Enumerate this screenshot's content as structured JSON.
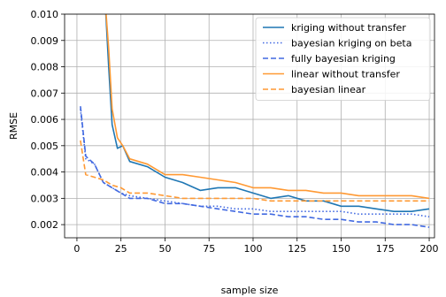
{
  "chart_data": {
    "type": "line",
    "xlabel": "sample size",
    "ylabel": "RMSE",
    "xlim": [
      -7,
      203
    ],
    "ylim": [
      0.0015,
      0.01
    ],
    "xticks": [
      0,
      25,
      50,
      75,
      100,
      125,
      150,
      175,
      200
    ],
    "yticks": [
      0.002,
      0.003,
      0.004,
      0.005,
      0.006,
      0.007,
      0.008,
      0.009,
      0.01
    ],
    "xtick_labels": [
      "0",
      "25",
      "50",
      "75",
      "100",
      "125",
      "150",
      "175",
      "200"
    ],
    "ytick_labels": [
      "0.002",
      "0.003",
      "0.004",
      "0.005",
      "0.006",
      "0.007",
      "0.008",
      "0.009",
      "0.010"
    ],
    "grid": true,
    "legend_position": "upper-right",
    "series": [
      {
        "name": "kriging without transfer",
        "color": "#1f77b4",
        "style": "solid",
        "x": [
          16,
          18,
          20,
          23,
          26,
          30,
          40,
          50,
          60,
          70,
          80,
          90,
          100,
          110,
          120,
          130,
          140,
          150,
          160,
          170,
          180,
          190,
          200
        ],
        "y": [
          0.0105,
          0.008,
          0.0058,
          0.0049,
          0.005,
          0.0044,
          0.0042,
          0.0038,
          0.0036,
          0.0033,
          0.0034,
          0.0034,
          0.0032,
          0.003,
          0.0031,
          0.0029,
          0.0029,
          0.0027,
          0.0027,
          0.0026,
          0.0025,
          0.0025,
          0.0026
        ]
      },
      {
        "name": "bayesian kriging on beta",
        "color": "#4169e1",
        "style": "dotted",
        "x": [
          2,
          5,
          10,
          15,
          20,
          25,
          30,
          40,
          50,
          60,
          70,
          80,
          90,
          100,
          110,
          120,
          130,
          140,
          150,
          160,
          170,
          180,
          190,
          200
        ],
        "y": [
          0.0064,
          0.0045,
          0.0043,
          0.0036,
          0.0034,
          0.0032,
          0.0031,
          0.003,
          0.0029,
          0.0028,
          0.0027,
          0.0027,
          0.0026,
          0.0026,
          0.0025,
          0.0025,
          0.0025,
          0.0025,
          0.0025,
          0.0024,
          0.0024,
          0.0024,
          0.0024,
          0.0023
        ]
      },
      {
        "name": "fully bayesian kriging",
        "color": "#4169e1",
        "style": "dashed",
        "x": [
          2,
          5,
          10,
          15,
          20,
          25,
          30,
          40,
          50,
          60,
          70,
          80,
          90,
          100,
          110,
          120,
          130,
          140,
          150,
          160,
          170,
          180,
          190,
          200
        ],
        "y": [
          0.0065,
          0.0046,
          0.0043,
          0.0036,
          0.0034,
          0.0032,
          0.003,
          0.003,
          0.0028,
          0.0028,
          0.0027,
          0.0026,
          0.0025,
          0.0024,
          0.0024,
          0.0023,
          0.0023,
          0.0022,
          0.0022,
          0.0021,
          0.0021,
          0.002,
          0.002,
          0.0019
        ]
      },
      {
        "name": "linear without transfer",
        "color": "#ff9933",
        "style": "solid",
        "x": [
          16,
          18,
          20,
          23,
          26,
          30,
          40,
          50,
          60,
          70,
          80,
          90,
          100,
          110,
          120,
          130,
          140,
          150,
          160,
          170,
          180,
          190,
          200
        ],
        "y": [
          0.0105,
          0.0087,
          0.0064,
          0.0053,
          0.005,
          0.0045,
          0.0043,
          0.0039,
          0.0039,
          0.0038,
          0.0037,
          0.0036,
          0.0034,
          0.0034,
          0.0033,
          0.0033,
          0.0032,
          0.0032,
          0.0031,
          0.0031,
          0.0031,
          0.0031,
          0.003
        ]
      },
      {
        "name": "bayesian linear",
        "color": "#ff9933",
        "style": "dashed",
        "x": [
          2,
          5,
          10,
          15,
          20,
          25,
          30,
          40,
          50,
          60,
          70,
          80,
          90,
          100,
          110,
          120,
          130,
          140,
          150,
          160,
          170,
          180,
          190,
          200
        ],
        "y": [
          0.0052,
          0.0039,
          0.0038,
          0.0037,
          0.0035,
          0.0034,
          0.0032,
          0.0032,
          0.0031,
          0.003,
          0.003,
          0.003,
          0.003,
          0.003,
          0.0029,
          0.0029,
          0.0029,
          0.0029,
          0.0029,
          0.0029,
          0.0029,
          0.0029,
          0.0029,
          0.0029
        ]
      }
    ]
  }
}
